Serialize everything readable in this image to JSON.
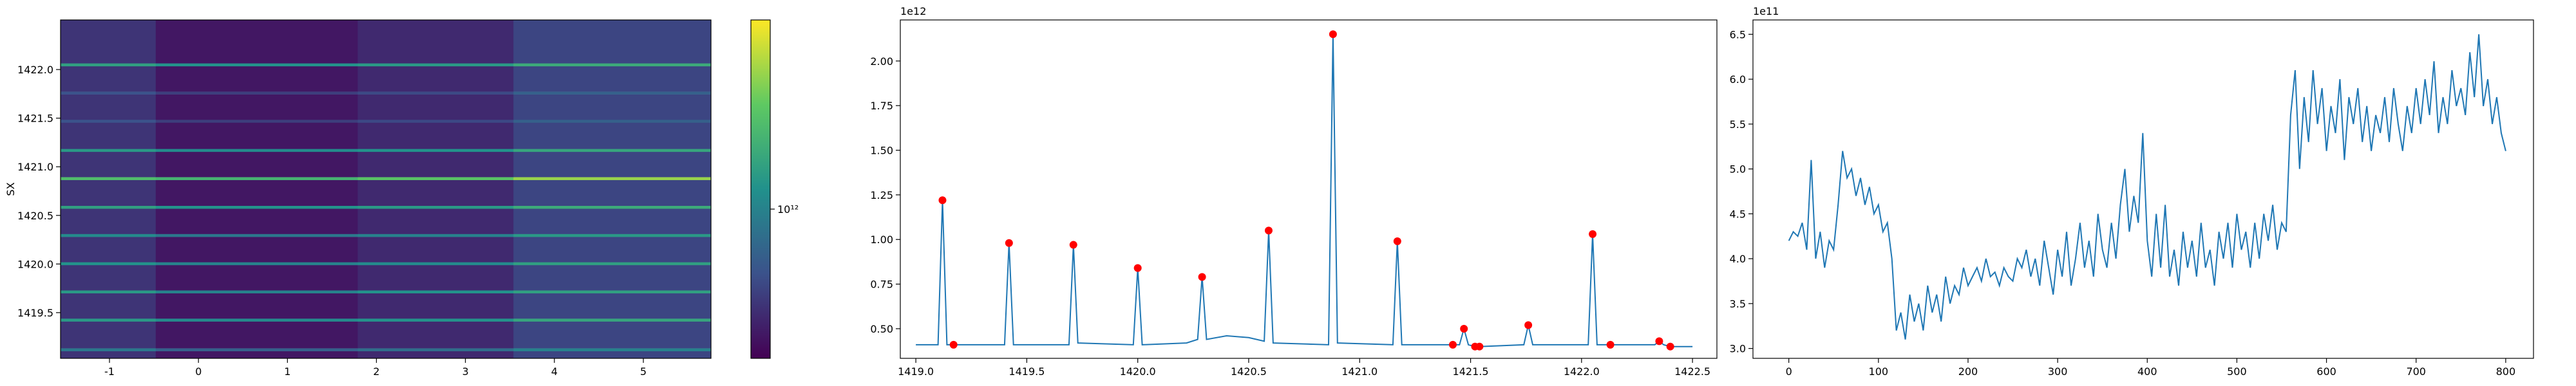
{
  "chart_data": [
    {
      "type": "heatmap",
      "ylabel": "SX",
      "x_edges": [
        -1.55,
        -0.48,
        1.79,
        3.54,
        5.76
      ],
      "y_edges": [
        1419.03,
        1419.105,
        1419.135,
        1419.41,
        1419.44,
        1419.7,
        1419.73,
        1419.99,
        1420.02,
        1420.28,
        1420.31,
        1420.57,
        1420.6,
        1420.865,
        1420.895,
        1421.155,
        1421.185,
        1421.455,
        1421.485,
        1421.745,
        1421.775,
        1422.035,
        1422.065,
        1422.51
      ],
      "z": [
        [
          460000000000.0,
          360000000000.0,
          420000000000.0,
          530000000000.0
        ],
        [
          900000000000.0,
          700000000000.0,
          800000000000.0,
          1000000000000.0
        ],
        [
          460000000000.0,
          360000000000.0,
          420000000000.0,
          530000000000.0
        ],
        [
          1300000000000.0,
          1100000000000.0,
          1200000000000.0,
          1500000000000.0
        ],
        [
          460000000000.0,
          360000000000.0,
          420000000000.0,
          530000000000.0
        ],
        [
          1300000000000.0,
          1000000000000.0,
          1200000000000.0,
          1400000000000.0
        ],
        [
          460000000000.0,
          360000000000.0,
          420000000000.0,
          530000000000.0
        ],
        [
          1200000000000.0,
          1000000000000.0,
          1100000000000.0,
          1400000000000.0
        ],
        [
          460000000000.0,
          360000000000.0,
          420000000000.0,
          530000000000.0
        ],
        [
          1100000000000.0,
          900000000000.0,
          1000000000000.0,
          1300000000000.0
        ],
        [
          460000000000.0,
          360000000000.0,
          420000000000.0,
          530000000000.0
        ],
        [
          1400000000000.0,
          1200000000000.0,
          1300000000000.0,
          1600000000000.0
        ],
        [
          460000000000.0,
          360000000000.0,
          420000000000.0,
          530000000000.0
        ],
        [
          2000000000000.0,
          1800000000000.0,
          2200000000000.0,
          3000000000000.0
        ],
        [
          460000000000.0,
          360000000000.0,
          420000000000.0,
          530000000000.0
        ],
        [
          1300000000000.0,
          1100000000000.0,
          1200000000000.0,
          1500000000000.0
        ],
        [
          460000000000.0,
          360000000000.0,
          420000000000.0,
          530000000000.0
        ],
        [
          600000000000.0,
          500000000000.0,
          550000000000.0,
          700000000000.0
        ],
        [
          460000000000.0,
          360000000000.0,
          420000000000.0,
          530000000000.0
        ],
        [
          600000000000.0,
          500000000000.0,
          550000000000.0,
          700000000000.0
        ],
        [
          460000000000.0,
          360000000000.0,
          420000000000.0,
          530000000000.0
        ],
        [
          1400000000000.0,
          1200000000000.0,
          1300000000000.0,
          1600000000000.0
        ],
        [
          460000000000.0,
          360000000000.0,
          420000000000.0,
          530000000000.0
        ]
      ],
      "xlim": [
        -1.55,
        5.76
      ],
      "ylim": [
        1419.03,
        1422.51
      ],
      "xticks": [
        -1,
        0,
        1,
        2,
        3,
        4,
        5
      ],
      "yticks": [
        1419.5,
        {
          "value": 1420,
          "label": "1420.0"
        },
        1420.5,
        {
          "value": 1421,
          "label": "1421.0"
        },
        1421.5,
        {
          "value": 1422,
          "label": "1422.0"
        }
      ],
      "colormap": "viridis",
      "colorbar": {
        "log": true,
        "lim": [
          300000000000.0,
          4600000000000.0
        ],
        "ticks": [
          {
            "value": 1000000000000.0,
            "label": "10¹²"
          }
        ]
      }
    },
    {
      "type": "line",
      "y_offset_label": "1e12",
      "series": [
        {
          "style": "line",
          "color": "#1f77b4",
          "x": [
            1419.0,
            1419.1,
            1419.12,
            1419.14,
            1419.17,
            1419.4,
            1419.42,
            1419.44,
            1419.69,
            1419.71,
            1419.73,
            1419.98,
            1420.0,
            1420.02,
            1420.22,
            1420.27,
            1420.29,
            1420.31,
            1420.4,
            1420.5,
            1420.57,
            1420.59,
            1420.61,
            1420.86,
            1420.88,
            1420.9,
            1421.15,
            1421.17,
            1421.19,
            1421.42,
            1421.45,
            1421.47,
            1421.49,
            1421.52,
            1421.54,
            1421.74,
            1421.76,
            1421.78,
            1422.03,
            1422.05,
            1422.07,
            1422.13,
            1422.33,
            1422.35,
            1422.37,
            1422.4,
            1422.5
          ],
          "values": [
            0.41,
            0.41,
            1.22,
            0.41,
            0.41,
            0.41,
            0.98,
            0.41,
            0.41,
            0.97,
            0.42,
            0.41,
            0.84,
            0.41,
            0.42,
            0.44,
            0.79,
            0.44,
            0.46,
            0.45,
            0.43,
            1.05,
            0.42,
            0.41,
            2.15,
            0.42,
            0.41,
            0.99,
            0.41,
            0.41,
            0.41,
            0.5,
            0.41,
            0.4,
            0.4,
            0.41,
            0.52,
            0.41,
            0.41,
            1.03,
            0.41,
            0.41,
            0.41,
            0.43,
            0.41,
            0.4,
            0.4
          ]
        },
        {
          "style": "scatter",
          "color": "red",
          "x": [
            1419.12,
            1419.17,
            1419.42,
            1419.71,
            1420.0,
            1420.29,
            1420.59,
            1420.88,
            1421.17,
            1421.42,
            1421.47,
            1421.52,
            1421.54,
            1421.76,
            1422.05,
            1422.13,
            1422.35,
            1422.4
          ],
          "values": [
            1.22,
            0.41,
            0.98,
            0.97,
            0.84,
            0.79,
            1.05,
            2.15,
            0.99,
            0.41,
            0.5,
            0.4,
            0.4,
            0.52,
            1.03,
            0.41,
            0.43,
            0.4
          ]
        }
      ],
      "xlim": [
        1418.93,
        1422.61
      ],
      "ylim": [
        0.334,
        2.23
      ],
      "xticks": [
        {
          "value": 1419,
          "label": "1419.0"
        },
        1419.5,
        {
          "value": 1420,
          "label": "1420.0"
        },
        1420.5,
        {
          "value": 1421,
          "label": "1421.0"
        },
        1421.5,
        {
          "value": 1422,
          "label": "1422.0"
        },
        1422.5
      ],
      "yticks": [
        {
          "value": 0.5,
          "label": "0.50"
        },
        0.75,
        {
          "value": 1,
          "label": "1.00"
        },
        1.25,
        {
          "value": 1.5,
          "label": "1.50"
        },
        1.75,
        {
          "value": 2,
          "label": "2.00"
        }
      ]
    },
    {
      "type": "line",
      "y_offset_label": "1e11",
      "series": [
        {
          "style": "line",
          "color": "#1f77b4",
          "x": [
            0,
            5,
            10,
            15,
            20,
            25,
            30,
            35,
            40,
            45,
            50,
            55,
            60,
            65,
            70,
            75,
            80,
            85,
            90,
            95,
            100,
            105,
            110,
            115,
            120,
            125,
            130,
            135,
            140,
            145,
            150,
            155,
            160,
            165,
            170,
            175,
            180,
            185,
            190,
            195,
            200,
            205,
            210,
            215,
            220,
            225,
            230,
            235,
            240,
            245,
            250,
            255,
            260,
            265,
            270,
            275,
            280,
            285,
            290,
            295,
            300,
            305,
            310,
            315,
            320,
            325,
            330,
            335,
            340,
            345,
            350,
            355,
            360,
            365,
            370,
            375,
            380,
            385,
            390,
            395,
            400,
            405,
            410,
            415,
            420,
            425,
            430,
            435,
            440,
            445,
            450,
            455,
            460,
            465,
            470,
            475,
            480,
            485,
            490,
            495,
            500,
            505,
            510,
            515,
            520,
            525,
            530,
            535,
            540,
            545,
            550,
            555,
            560,
            565,
            570,
            575,
            580,
            585,
            590,
            595,
            600,
            605,
            610,
            615,
            620,
            625,
            630,
            635,
            640,
            645,
            650,
            655,
            660,
            665,
            670,
            675,
            680,
            685,
            690,
            695,
            700,
            705,
            710,
            715,
            720,
            725,
            730,
            735,
            740,
            745,
            750,
            755,
            760,
            765,
            770,
            775,
            780,
            785,
            790,
            795,
            800
          ],
          "values": [
            4.2,
            4.3,
            4.25,
            4.4,
            4.1,
            5.1,
            4.0,
            4.3,
            3.9,
            4.2,
            4.1,
            4.6,
            5.2,
            4.9,
            5.0,
            4.7,
            4.9,
            4.6,
            4.8,
            4.5,
            4.6,
            4.3,
            4.4,
            4.0,
            3.2,
            3.4,
            3.1,
            3.6,
            3.3,
            3.5,
            3.2,
            3.7,
            3.4,
            3.6,
            3.3,
            3.8,
            3.5,
            3.7,
            3.6,
            3.9,
            3.7,
            3.8,
            3.9,
            3.75,
            4.0,
            3.8,
            3.85,
            3.7,
            3.9,
            3.8,
            3.75,
            4.0,
            3.9,
            4.1,
            3.8,
            4.0,
            3.7,
            4.2,
            3.9,
            3.6,
            4.1,
            3.8,
            4.3,
            3.7,
            4.0,
            4.4,
            3.9,
            4.2,
            3.8,
            4.5,
            4.1,
            3.9,
            4.4,
            4.0,
            4.6,
            5.0,
            4.3,
            4.7,
            4.4,
            5.4,
            4.2,
            3.8,
            4.5,
            3.9,
            4.6,
            3.8,
            4.1,
            3.7,
            4.3,
            3.9,
            4.2,
            3.8,
            4.4,
            3.9,
            4.1,
            3.7,
            4.3,
            4.0,
            4.4,
            3.9,
            4.5,
            4.1,
            4.3,
            3.9,
            4.4,
            4.0,
            4.5,
            4.2,
            4.6,
            4.1,
            4.4,
            4.3,
            5.6,
            6.1,
            5.0,
            5.8,
            5.3,
            6.1,
            5.5,
            5.9,
            5.2,
            5.7,
            5.4,
            6.0,
            5.1,
            5.8,
            5.5,
            5.9,
            5.3,
            5.7,
            5.2,
            5.6,
            5.4,
            5.8,
            5.3,
            5.9,
            5.5,
            5.2,
            5.7,
            5.4,
            5.9,
            5.5,
            6.0,
            5.6,
            6.2,
            5.4,
            5.8,
            5.5,
            6.1,
            5.7,
            5.9,
            5.6,
            6.3,
            5.8,
            6.5,
            5.7,
            6.0,
            5.5,
            5.8,
            5.4,
            5.2
          ]
        }
      ],
      "xlim": [
        -40,
        831
      ],
      "ylim": [
        2.89,
        6.66
      ],
      "xticks": [
        0,
        100,
        200,
        300,
        400,
        500,
        600,
        700,
        800
      ],
      "yticks": [
        {
          "value": 3,
          "label": "3.0"
        },
        3.5,
        {
          "value": 4,
          "label": "4.0"
        },
        4.5,
        {
          "value": 5,
          "label": "5.0"
        },
        5.5,
        {
          "value": 6,
          "label": "6.0"
        },
        6.5
      ]
    }
  ]
}
